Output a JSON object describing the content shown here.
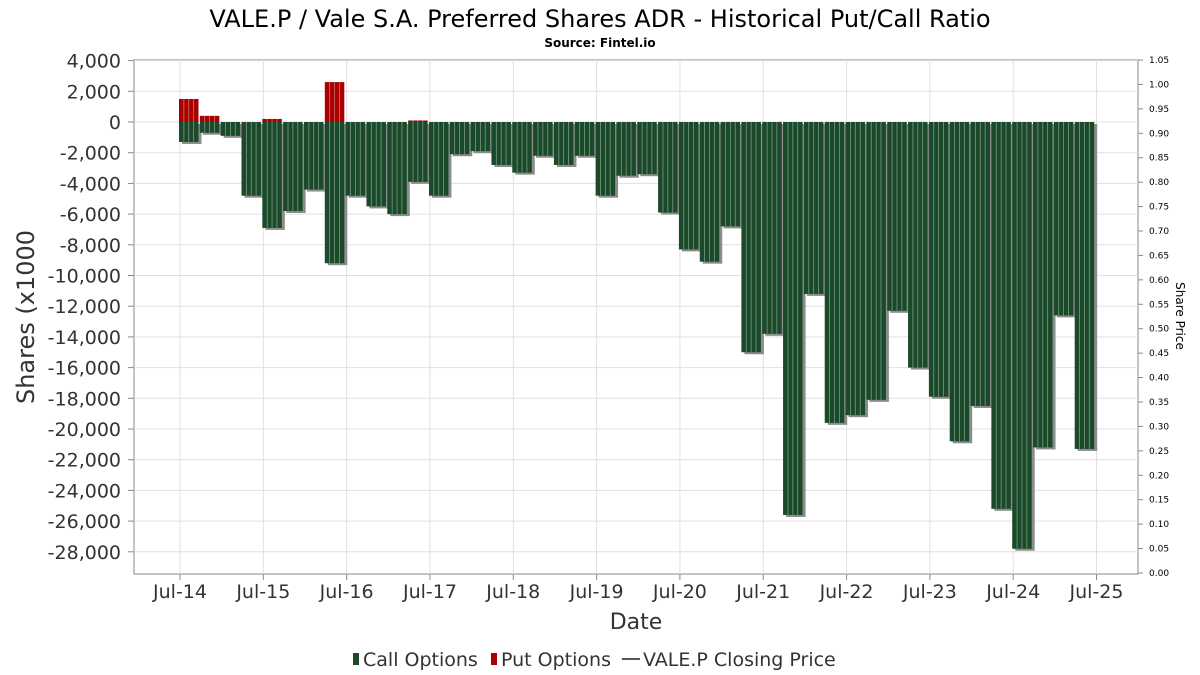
{
  "chart_data": {
    "type": "bar",
    "title": "VALE.P / Vale S.A. Preferred Shares ADR - Historical Put/Call Ratio",
    "subtitle": "Source: Fintel.io",
    "xlabel": "Date",
    "ylabel": "Shares (x1000",
    "y2label": "Share Price",
    "ylim": [
      -29000,
      4000
    ],
    "y2lim": [
      0.0,
      1.05
    ],
    "yticks": [
      "4,000",
      "2,000",
      "0",
      "-2,000",
      "-4,000",
      "-6,000",
      "-8,000",
      "-10,000",
      "-12,000",
      "-14,000",
      "-16,000",
      "-18,000",
      "-20,000",
      "-22,000",
      "-24,000",
      "-26,000",
      "-28,000"
    ],
    "ytick_values": [
      4000,
      2000,
      0,
      -2000,
      -4000,
      -6000,
      -8000,
      -10000,
      -12000,
      -14000,
      -16000,
      -18000,
      -20000,
      -22000,
      -24000,
      -26000,
      -28000
    ],
    "y2ticks": [
      "1.05",
      "1.00",
      "0.95",
      "0.90",
      "0.85",
      "0.80",
      "0.75",
      "0.70",
      "0.65",
      "0.60",
      "0.55",
      "0.50",
      "0.45",
      "0.40",
      "0.35",
      "0.30",
      "0.25",
      "0.20",
      "0.15",
      "0.10",
      "0.05",
      "0.00"
    ],
    "xticks": [
      "Jul-14",
      "Jul-15",
      "Jul-16",
      "Jul-17",
      "Jul-18",
      "Jul-19",
      "Jul-20",
      "Jul-21",
      "Jul-22",
      "Jul-23",
      "Jul-24",
      "Jul-25"
    ],
    "x_start": "2014-07",
    "period": "quarterly",
    "grid": true,
    "legend_position": "bottom",
    "legend": [
      {
        "label": "Call Options",
        "color": "#1a4a2a",
        "kind": "bar"
      },
      {
        "label": "Put Options",
        "color": "#aa0000",
        "kind": "bar"
      },
      {
        "label": "VALE.P Closing Price",
        "color": "#555555",
        "kind": "line"
      }
    ],
    "series": [
      {
        "name": "Call Options",
        "values": [
          -1300,
          -700,
          -900,
          -4800,
          -6900,
          -5800,
          -4400,
          -9200,
          -4800,
          -5500,
          -6000,
          -3900,
          -4800,
          -2100,
          -1900,
          -2800,
          -3300,
          -2200,
          -2800,
          -2200,
          -4800,
          -3500,
          -3400,
          -5900,
          -8300,
          -9100,
          -6800,
          -15000,
          -13800,
          -25600,
          -11200,
          -19600,
          -19100,
          -18100,
          -12300,
          -16000,
          -17900,
          -20800,
          -18500,
          -25200,
          -27800,
          -21200,
          -12600,
          -21300
        ]
      },
      {
        "name": "Put Options",
        "values": [
          1500,
          400,
          0,
          0,
          200,
          0,
          0,
          2600,
          0,
          0,
          0,
          100,
          0,
          0,
          0,
          0,
          0,
          0,
          0,
          0,
          0,
          0,
          0,
          0,
          0,
          0,
          0,
          0,
          0,
          0,
          0,
          0,
          0,
          0,
          0,
          0,
          0,
          0,
          0,
          0,
          0,
          0,
          0,
          0
        ]
      }
    ]
  }
}
